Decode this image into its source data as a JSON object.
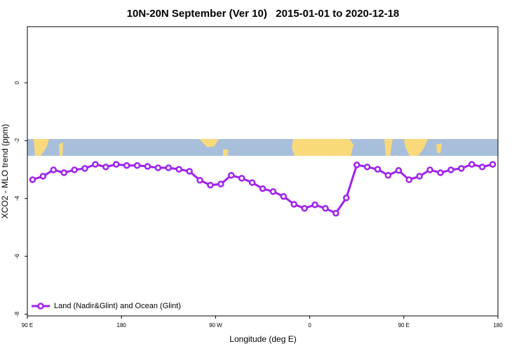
{
  "chart_data": {
    "type": "line",
    "title": "10N-20N September (Ver 10)   2015-01-01 to 2020-12-18",
    "x_label": "Longitude (deg E)",
    "y_label": "XCO2 - MLO trend (ppm)",
    "xlim": [
      90,
      540
    ],
    "xticks": [
      {
        "value": 90,
        "label": "90 E"
      },
      {
        "value": 180,
        "label": "180"
      },
      {
        "value": 270,
        "label": "90 W"
      },
      {
        "value": 360,
        "label": "0"
      },
      {
        "value": 450,
        "label": "90 E"
      },
      {
        "value": 540,
        "label": "180"
      }
    ],
    "ylim": [
      -8.06,
      1.94
    ],
    "yticks": [
      0,
      -2,
      -4,
      -6,
      -8
    ],
    "legend": "bottom-left",
    "series": [
      {
        "name": "Land (Nadir&Glint) and Ocean (Glint)",
        "color": "#a020f0",
        "x": [
          95,
          105,
          115,
          125,
          135,
          145,
          155,
          165,
          175,
          185,
          195,
          205,
          215,
          225,
          235,
          245,
          255,
          265,
          275,
          285,
          295,
          305,
          315,
          325,
          335,
          345,
          355,
          365,
          375,
          385,
          395,
          405,
          415,
          425,
          435,
          445,
          455,
          465,
          475,
          485,
          495,
          505,
          515,
          525,
          535
        ],
        "values": [
          -3.35,
          -3.23,
          -3.01,
          -3.11,
          -3.01,
          -2.96,
          -2.82,
          -2.91,
          -2.82,
          -2.86,
          -2.86,
          -2.89,
          -2.94,
          -2.94,
          -2.99,
          -3.06,
          -3.37,
          -3.54,
          -3.5,
          -3.2,
          -3.3,
          -3.45,
          -3.66,
          -3.76,
          -3.93,
          -4.2,
          -4.34,
          -4.22,
          -4.34,
          -4.51,
          -3.98,
          -2.84,
          -2.91,
          -2.99,
          -3.2,
          -3.03,
          -3.35,
          -3.23,
          -3.01,
          -3.11,
          -3.01,
          -2.96,
          -2.82,
          -2.91,
          -2.82
        ]
      }
    ]
  }
}
